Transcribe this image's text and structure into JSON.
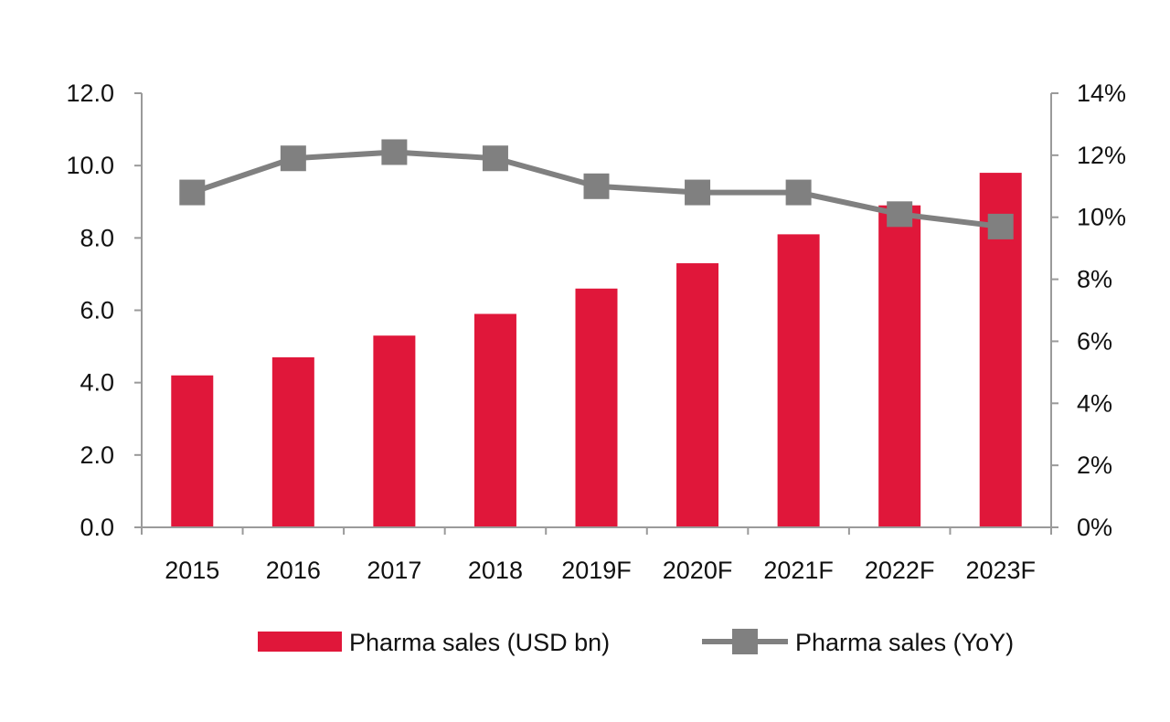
{
  "chart_data": {
    "type": "bar+line",
    "categories": [
      "2015",
      "2016",
      "2017",
      "2018",
      "2019F",
      "2020F",
      "2021F",
      "2022F",
      "2023F"
    ],
    "series": [
      {
        "name": "Pharma sales (USD bn)",
        "type": "bar",
        "axis": "left",
        "color": "#e0173a",
        "values": [
          4.2,
          4.7,
          5.3,
          5.9,
          6.6,
          7.3,
          8.1,
          8.9,
          9.8
        ]
      },
      {
        "name": "Pharma sales (YoY)",
        "type": "line",
        "axis": "right",
        "color": "#808080",
        "values": [
          10.8,
          11.9,
          12.1,
          11.9,
          11.0,
          10.8,
          10.8,
          10.1,
          9.7
        ]
      }
    ],
    "y_left": {
      "min": 0,
      "max": 12,
      "step": 2,
      "ticks": [
        "0.0",
        "2.0",
        "4.0",
        "6.0",
        "8.0",
        "10.0",
        "12.0"
      ]
    },
    "y_right": {
      "min": 0,
      "max": 14,
      "step": 2,
      "ticks": [
        "0%",
        "2%",
        "4%",
        "6%",
        "8%",
        "10%",
        "12%",
        "14%"
      ]
    },
    "title": "",
    "xlabel": "",
    "ylabel": "",
    "grid": false,
    "legend_position": "bottom",
    "legend": [
      "Pharma sales (USD bn)",
      "Pharma sales (YoY)"
    ]
  }
}
